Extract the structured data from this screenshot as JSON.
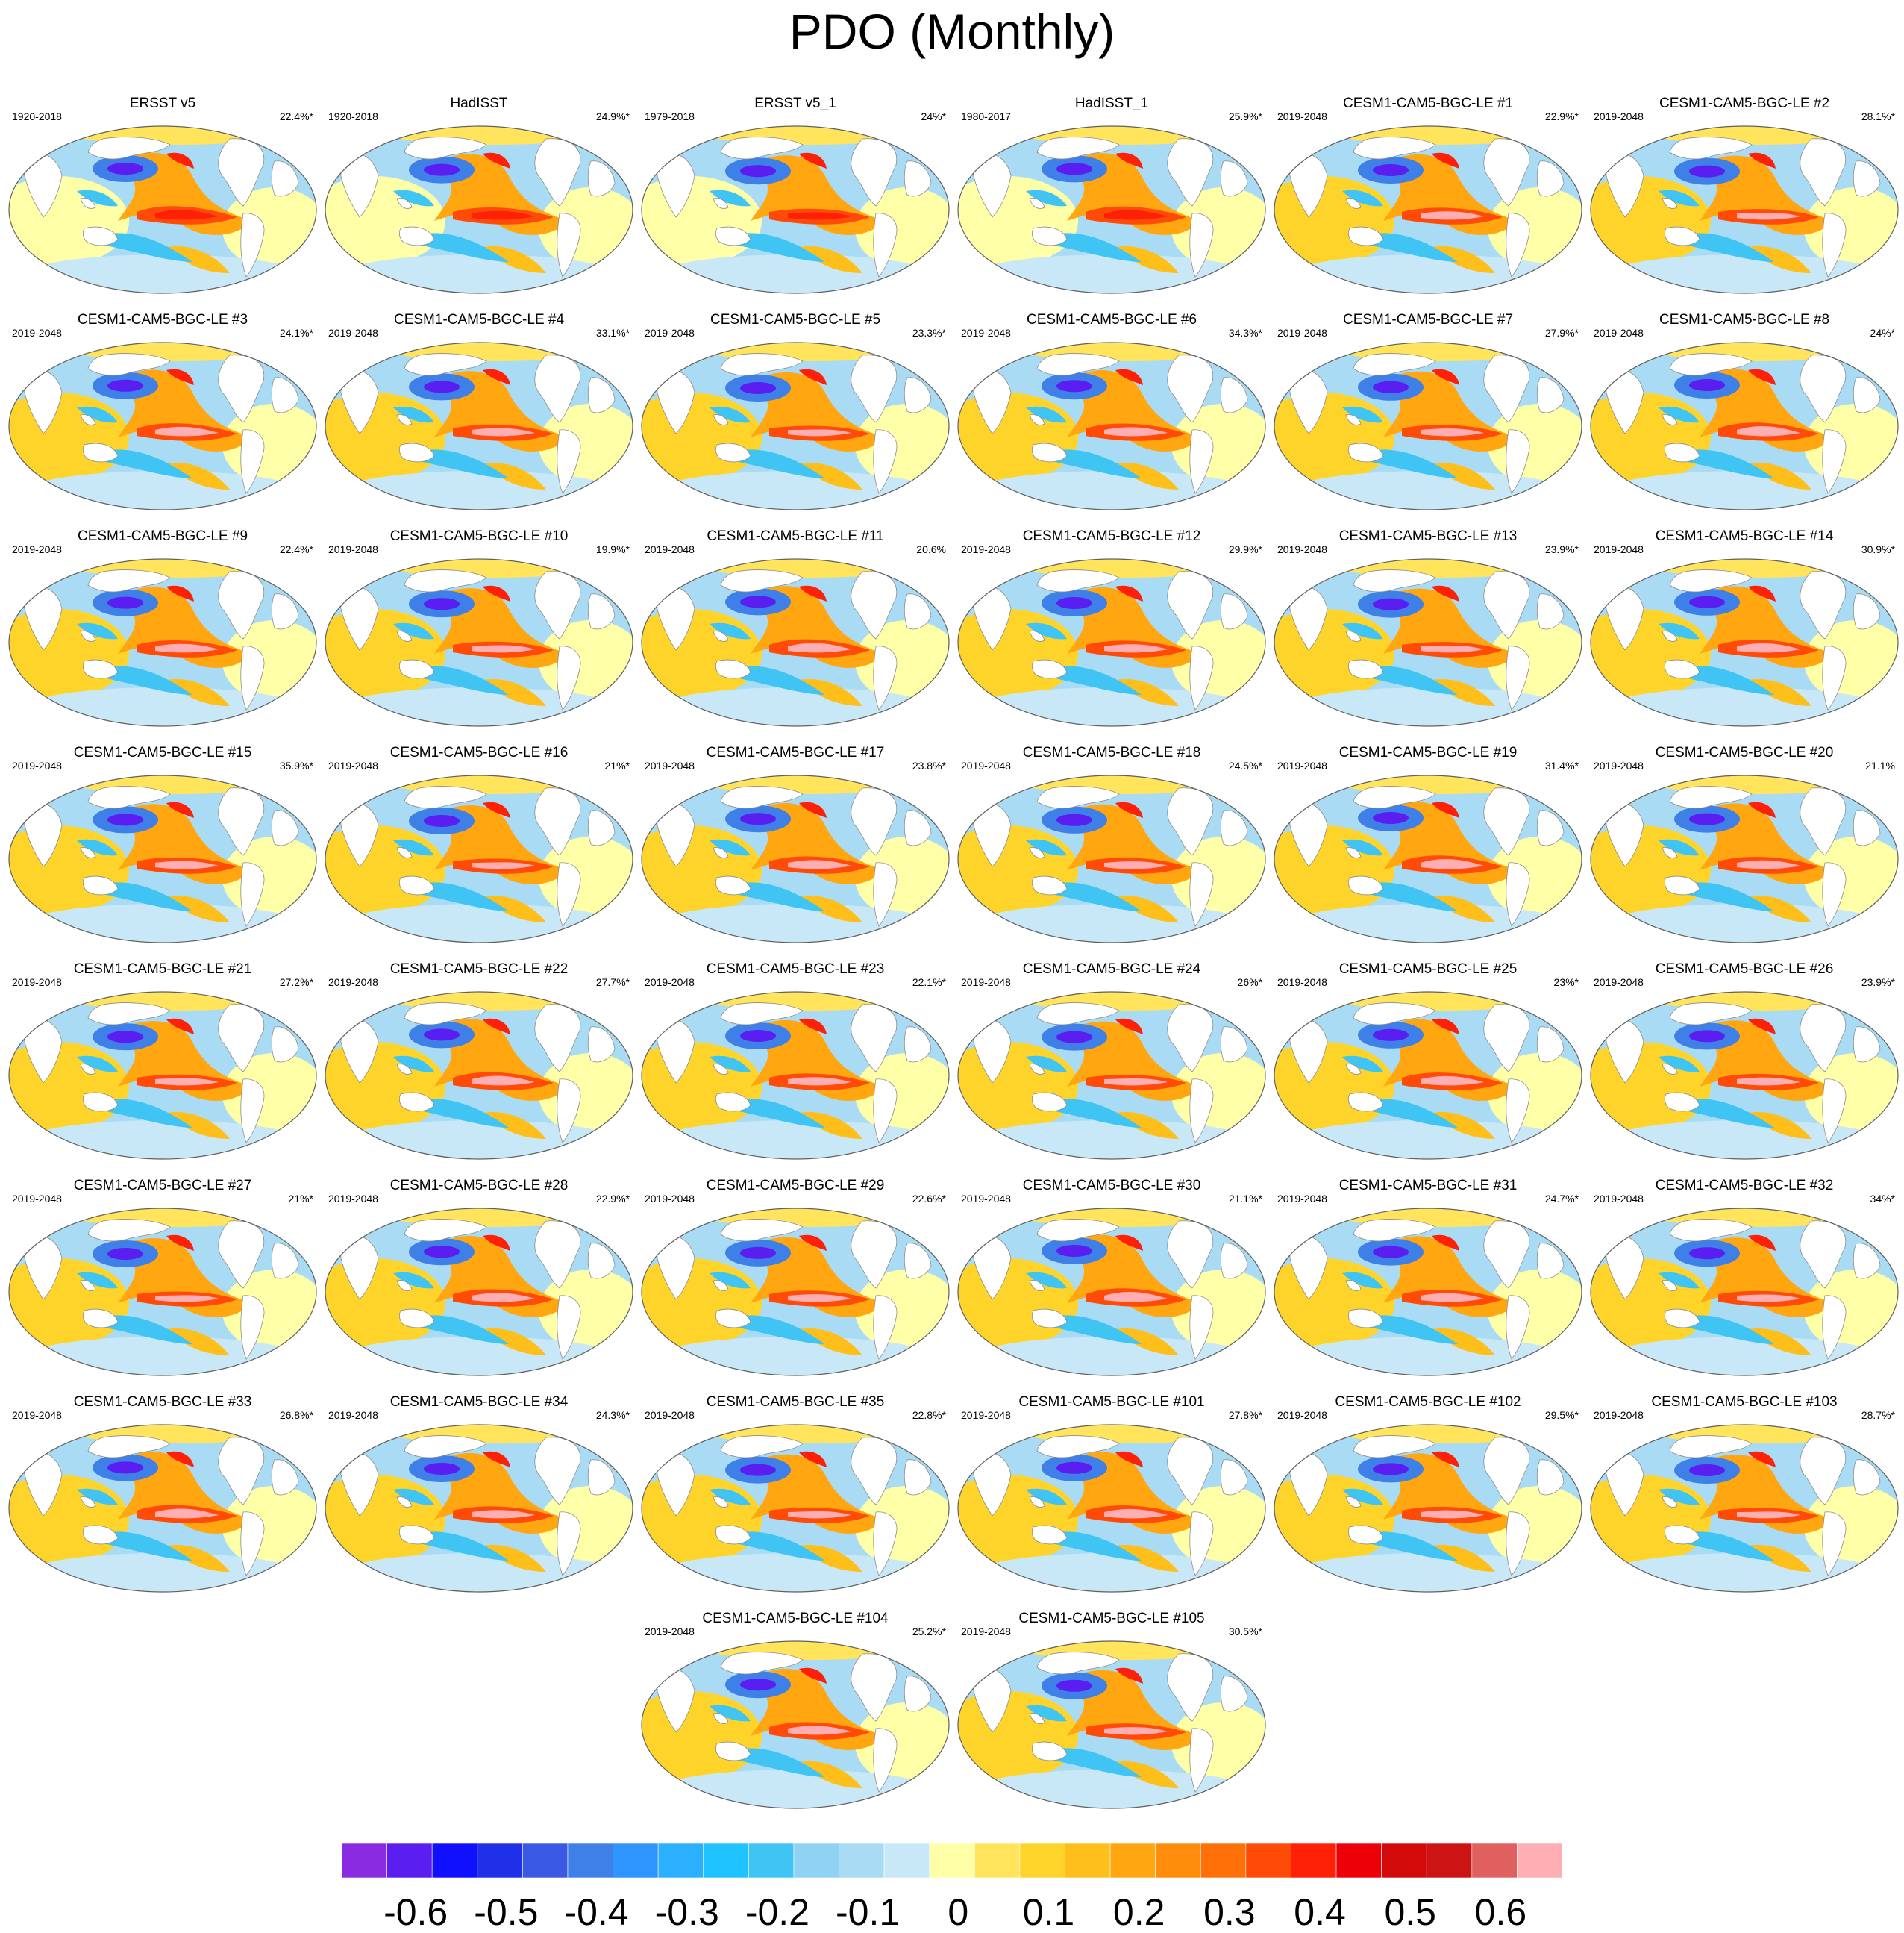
{
  "title": "PDO (Monthly)",
  "panels": [
    {
      "title": "ERSST v5",
      "period": "1920-2018",
      "pct": "22.4%*"
    },
    {
      "title": "HadISST",
      "period": "1920-2018",
      "pct": "24.9%*"
    },
    {
      "title": "ERSST v5_1",
      "period": "1979-2018",
      "pct": "24%*"
    },
    {
      "title": "HadISST_1",
      "period": "1980-2017",
      "pct": "25.9%*"
    },
    {
      "title": "CESM1-CAM5-BGC-LE #1",
      "period": "2019-2048",
      "pct": "22.9%*"
    },
    {
      "title": "CESM1-CAM5-BGC-LE #2",
      "period": "2019-2048",
      "pct": "28.1%*"
    },
    {
      "title": "CESM1-CAM5-BGC-LE #3",
      "period": "2019-2048",
      "pct": "24.1%*"
    },
    {
      "title": "CESM1-CAM5-BGC-LE #4",
      "period": "2019-2048",
      "pct": "33.1%*"
    },
    {
      "title": "CESM1-CAM5-BGC-LE #5",
      "period": "2019-2048",
      "pct": "23.3%*"
    },
    {
      "title": "CESM1-CAM5-BGC-LE #6",
      "period": "2019-2048",
      "pct": "34.3%*"
    },
    {
      "title": "CESM1-CAM5-BGC-LE #7",
      "period": "2019-2048",
      "pct": "27.9%*"
    },
    {
      "title": "CESM1-CAM5-BGC-LE #8",
      "period": "2019-2048",
      "pct": "24%*"
    },
    {
      "title": "CESM1-CAM5-BGC-LE #9",
      "period": "2019-2048",
      "pct": "22.4%*"
    },
    {
      "title": "CESM1-CAM5-BGC-LE #10",
      "period": "2019-2048",
      "pct": "19.9%*"
    },
    {
      "title": "CESM1-CAM5-BGC-LE #11",
      "period": "2019-2048",
      "pct": "20.6%"
    },
    {
      "title": "CESM1-CAM5-BGC-LE #12",
      "period": "2019-2048",
      "pct": "29.9%*"
    },
    {
      "title": "CESM1-CAM5-BGC-LE #13",
      "period": "2019-2048",
      "pct": "23.9%*"
    },
    {
      "title": "CESM1-CAM5-BGC-LE #14",
      "period": "2019-2048",
      "pct": "30.9%*"
    },
    {
      "title": "CESM1-CAM5-BGC-LE #15",
      "period": "2019-2048",
      "pct": "35.9%*"
    },
    {
      "title": "CESM1-CAM5-BGC-LE #16",
      "period": "2019-2048",
      "pct": "21%*"
    },
    {
      "title": "CESM1-CAM5-BGC-LE #17",
      "period": "2019-2048",
      "pct": "23.8%*"
    },
    {
      "title": "CESM1-CAM5-BGC-LE #18",
      "period": "2019-2048",
      "pct": "24.5%*"
    },
    {
      "title": "CESM1-CAM5-BGC-LE #19",
      "period": "2019-2048",
      "pct": "31.4%*"
    },
    {
      "title": "CESM1-CAM5-BGC-LE #20",
      "period": "2019-2048",
      "pct": "21.1%"
    },
    {
      "title": "CESM1-CAM5-BGC-LE #21",
      "period": "2019-2048",
      "pct": "27.2%*"
    },
    {
      "title": "CESM1-CAM5-BGC-LE #22",
      "period": "2019-2048",
      "pct": "27.7%*"
    },
    {
      "title": "CESM1-CAM5-BGC-LE #23",
      "period": "2019-2048",
      "pct": "22.1%*"
    },
    {
      "title": "CESM1-CAM5-BGC-LE #24",
      "period": "2019-2048",
      "pct": "26%*"
    },
    {
      "title": "CESM1-CAM5-BGC-LE #25",
      "period": "2019-2048",
      "pct": "23%*"
    },
    {
      "title": "CESM1-CAM5-BGC-LE #26",
      "period": "2019-2048",
      "pct": "23.9%*"
    },
    {
      "title": "CESM1-CAM5-BGC-LE #27",
      "period": "2019-2048",
      "pct": "21%*"
    },
    {
      "title": "CESM1-CAM5-BGC-LE #28",
      "period": "2019-2048",
      "pct": "22.9%*"
    },
    {
      "title": "CESM1-CAM5-BGC-LE #29",
      "period": "2019-2048",
      "pct": "22.6%*"
    },
    {
      "title": "CESM1-CAM5-BGC-LE #30",
      "period": "2019-2048",
      "pct": "21.1%*"
    },
    {
      "title": "CESM1-CAM5-BGC-LE #31",
      "period": "2019-2048",
      "pct": "24.7%*"
    },
    {
      "title": "CESM1-CAM5-BGC-LE #32",
      "period": "2019-2048",
      "pct": "34%*"
    },
    {
      "title": "CESM1-CAM5-BGC-LE #33",
      "period": "2019-2048",
      "pct": "26.8%*"
    },
    {
      "title": "CESM1-CAM5-BGC-LE #34",
      "period": "2019-2048",
      "pct": "24.3%*"
    },
    {
      "title": "CESM1-CAM5-BGC-LE #35",
      "period": "2019-2048",
      "pct": "22.8%*"
    },
    {
      "title": "CESM1-CAM5-BGC-LE #101",
      "period": "2019-2048",
      "pct": "27.8%*"
    },
    {
      "title": "CESM1-CAM5-BGC-LE #102",
      "period": "2019-2048",
      "pct": "29.5%*"
    },
    {
      "title": "CESM1-CAM5-BGC-LE #103",
      "period": "2019-2048",
      "pct": "28.7%*"
    },
    {
      "title": "CESM1-CAM5-BGC-LE #104",
      "period": "2019-2048",
      "pct": "25.2%*"
    },
    {
      "title": "CESM1-CAM5-BGC-LE #105",
      "period": "2019-2048",
      "pct": "30.5%*"
    }
  ],
  "colorbar": {
    "colors": [
      "#8a2be2",
      "#5a1ef0",
      "#1010ff",
      "#2030e8",
      "#3a5ae6",
      "#3f7fe8",
      "#2e95ff",
      "#2ab0ff",
      "#1ec3ff",
      "#3fc4f4",
      "#8fd2f2",
      "#a9dcf4",
      "#c8e8f8",
      "#ffffa8",
      "#ffe45c",
      "#ffd42a",
      "#ffbf1a",
      "#ffa610",
      "#ff8c0a",
      "#ff7008",
      "#ff4a08",
      "#ff2008",
      "#ee0008",
      "#d20a0a",
      "#cc1414",
      "#e06060",
      "#ffaeb4"
    ],
    "labels": [
      "-0.6",
      "-0.5",
      "-0.4",
      "-0.3",
      "-0.2",
      "-0.1",
      "0",
      "0.1",
      "0.2",
      "0.3",
      "0.4",
      "0.5",
      "0.6"
    ]
  }
}
